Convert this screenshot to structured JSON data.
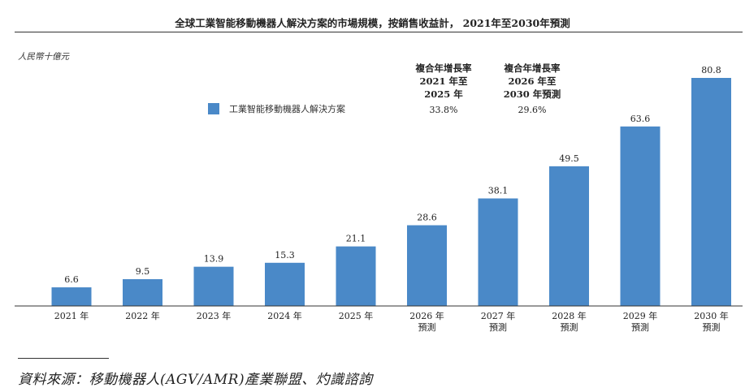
{
  "title": "全球工業智能移動機器人解決方案的市場規模，按銷售收益計， 2021年至2030年預測",
  "unit_label": "人民幣十億元",
  "cagr": [
    {
      "header": [
        "複合年增長率",
        "2021 年至",
        "2025 年"
      ],
      "value": "33.8%"
    },
    {
      "header": [
        "複合年增長率",
        "2026 年至",
        "2030 年預測"
      ],
      "value": "29.6%"
    }
  ],
  "legend": {
    "label": "工業智能移動機器人解決方案",
    "color": "#4a89c8"
  },
  "chart_data": {
    "type": "bar",
    "categories": [
      "2021 年",
      "2022 年",
      "2023 年",
      "2024 年",
      "2025 年",
      "2026 年\n預測",
      "2027 年\n預測",
      "2028 年\n預測",
      "2029 年\n預測",
      "2030 年\n預測"
    ],
    "series": [
      {
        "name": "工業智能移動機器人解決方案",
        "values": [
          6.6,
          9.5,
          13.9,
          15.3,
          21.1,
          28.6,
          38.1,
          49.5,
          63.6,
          80.8
        ]
      }
    ],
    "value_labels": [
      "6.6",
      "9.5",
      "13.9",
      "15.3",
      "21.1",
      "28.6",
      "38.1",
      "49.5",
      "63.6",
      "80.8"
    ],
    "ylabel": "人民幣十億元",
    "ylim": [
      0,
      80.8
    ],
    "grid": false,
    "legend_position": "top-left",
    "color": "#4a89c8"
  },
  "source": "資料來源：移動機器人(AGV/AMR)產業聯盟、灼識諮詢"
}
